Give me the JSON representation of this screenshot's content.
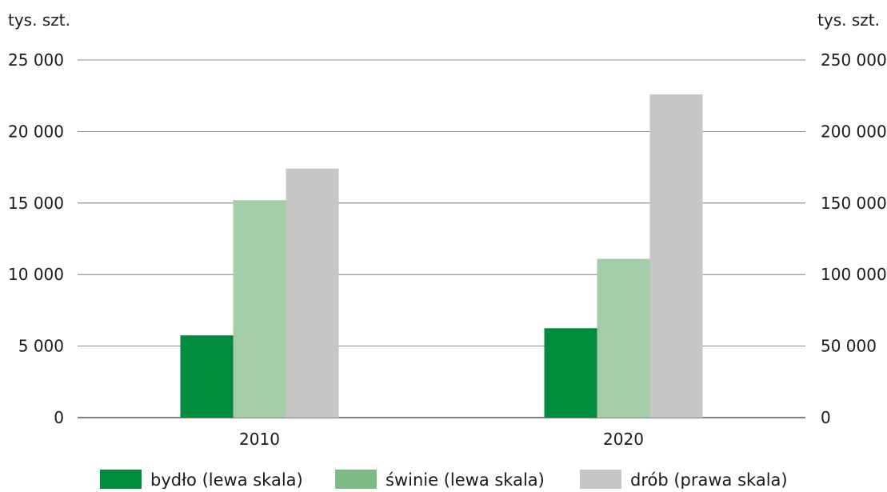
{
  "chart_data": {
    "type": "bar",
    "categories": [
      "2010",
      "2020"
    ],
    "left_axis": {
      "unit": "tys. szt.",
      "ylim": [
        0,
        25000
      ],
      "ticks": [
        0,
        5000,
        10000,
        15000,
        20000,
        25000
      ],
      "tick_labels": [
        "0",
        "5 000",
        "10 000",
        "15 000",
        "20 000",
        "25 000"
      ]
    },
    "right_axis": {
      "unit": "tys. szt.",
      "ylim": [
        0,
        250000
      ],
      "ticks": [
        0,
        50000,
        100000,
        150000,
        200000,
        250000
      ],
      "tick_labels": [
        "0",
        "50 000",
        "100 000",
        "150 000",
        "200 000",
        "250 000"
      ]
    },
    "series": [
      {
        "name": "bydło (lewa skala)",
        "axis": "left",
        "color": "#008c3c",
        "values": [
          5750,
          6250
        ]
      },
      {
        "name": "świnie (lewa skala)",
        "axis": "left",
        "color": "#a3cca7",
        "values": [
          15200,
          11100
        ]
      },
      {
        "name": "drób (prawa skala)",
        "axis": "right",
        "color": "#c6c6c6",
        "values": [
          174000,
          226000
        ]
      }
    ],
    "legend": {
      "placement": "bottom",
      "swatch_colors": [
        "#008c3c",
        "#7dba86",
        "#c6c6c6"
      ]
    },
    "grid": true,
    "gridline_color": "#6b6b6b"
  }
}
